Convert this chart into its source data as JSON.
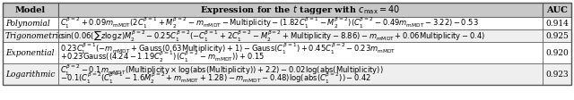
{
  "col_model": "Model",
  "col_expr": "Expression for the $t$ tagger with $c_{\\mathrm{max}} = 40$",
  "col_auc": "AUC",
  "rows": [
    {
      "model": "Polynomial",
      "expr1": "$C_1^{\\beta=2} + 0.09m_{\\mathrm{mMDT}}(2C_1^{\\beta=1} + M_2^{\\beta=2} - m_{\\mathrm{mMDT}} - \\mathrm{Multiplicity} - (1.82C_1^{\\beta=1} - M_2^{\\beta=2})(C_1^{\\beta=2} - 0.49m_{\\mathrm{mMDT}} - 3.22) - 0.53$",
      "expr2": "",
      "auc": "0.914"
    },
    {
      "model": "Trigonometric",
      "expr1": "$\\sin(0.06(\\sum z \\log z)M_2^{\\beta=2} - 0.25C_1^{\\beta=2}(-C_1^{\\beta=1} + 2C_1^{\\beta=2} - M_2^{\\beta=2} + \\mathrm{Multiplicity} - 8.86) - m_{\\mathrm{mMDT}} + 0.06\\mathrm{Multiplicity} - 0.4)$",
      "expr2": "",
      "auc": "0.925"
    },
    {
      "model": "Exponential",
      "expr1": "$0.23C_1^{\\beta=1}(-m_{\\mathrm{mMDT}} + \\mathrm{Gauss}(0.63\\mathrm{Multiplicity}) + 1) - \\mathrm{Gauss}(C_1^{\\beta=1}) + 0.45C_1^{\\beta=2} - 0.23m_{\\mathrm{mMDT}}$",
      "expr2": "$+0.23\\mathrm{Gauss}((4.24 - 1.19C_2^{\\beta=1})(C_1^{\\beta=2} - m_{\\mathrm{mMDT}})) + 0.15$",
      "auc": "0.920"
    },
    {
      "model": "Logarithmic",
      "expr1": "$C_1^{\\beta=2} - 0.1m_{\\mathrm{mMDT}}(\\mathrm{Multiplicity} \\times \\log(\\mathrm{abs}(\\mathrm{Multiplicity})) + 2.2) - 0.02\\log(\\mathrm{abs}(\\mathrm{Multiplicity}))$",
      "expr2": "$-0.1(C_1^{\\beta=2}(C_1^{\\beta=1} - 1.6M_2^{\\beta=2} + m_{\\mathrm{mMDT}} + 1.28) - m_{\\mathrm{mMDT}} - 0.48)\\log(\\mathrm{abs}(C_1^{\\beta=2})) - 0.42$",
      "auc": "0.923"
    }
  ],
  "header_bg": "#c8c8c8",
  "row_bg_even": "#ffffff",
  "row_bg_odd": "#efefef",
  "border_color": "#555555",
  "text_color": "#000000",
  "font_size": 6.5,
  "header_font_size": 7.0,
  "fig_width": 6.4,
  "fig_height": 1.12,
  "dpi": 100
}
